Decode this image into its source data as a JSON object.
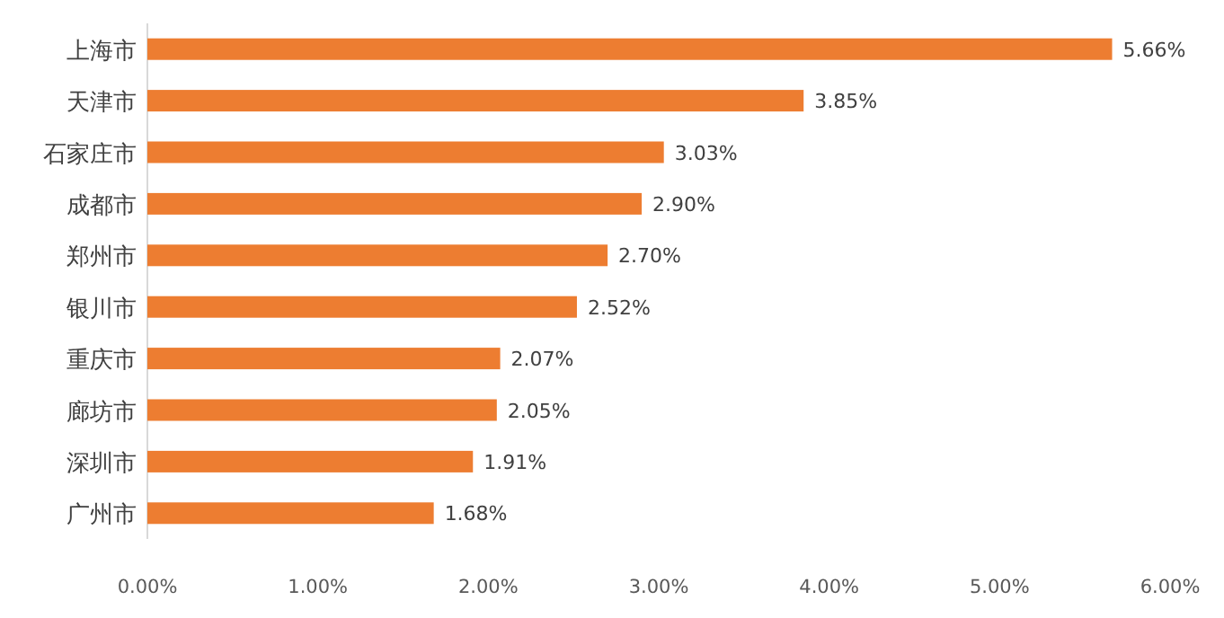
{
  "chart_data": {
    "type": "bar",
    "orientation": "horizontal",
    "categories": [
      "上海市",
      "天津市",
      "石家庄市",
      "成都市",
      "郑州市",
      "银川市",
      "重庆市",
      "廊坊市",
      "深圳市",
      "广州市"
    ],
    "values": [
      5.66,
      3.85,
      3.03,
      2.9,
      2.7,
      2.52,
      2.07,
      2.05,
      1.91,
      1.68
    ],
    "value_labels": [
      "5.66%",
      "3.85%",
      "3.03%",
      "2.90%",
      "2.70%",
      "2.52%",
      "2.07%",
      "2.05%",
      "1.91%",
      "1.68%"
    ],
    "color": "#ed7d31",
    "xlim": [
      0,
      6
    ],
    "xticks": [
      {
        "value": 0,
        "label": "0.00%"
      },
      {
        "value": 1,
        "label": "1.00%"
      },
      {
        "value": 2,
        "label": "2.00%"
      },
      {
        "value": 3,
        "label": "3.00%"
      },
      {
        "value": 4,
        "label": "4.00%"
      },
      {
        "value": 5,
        "label": "5.00%"
      },
      {
        "value": 6,
        "label": "6.00%"
      }
    ],
    "grid": false
  }
}
